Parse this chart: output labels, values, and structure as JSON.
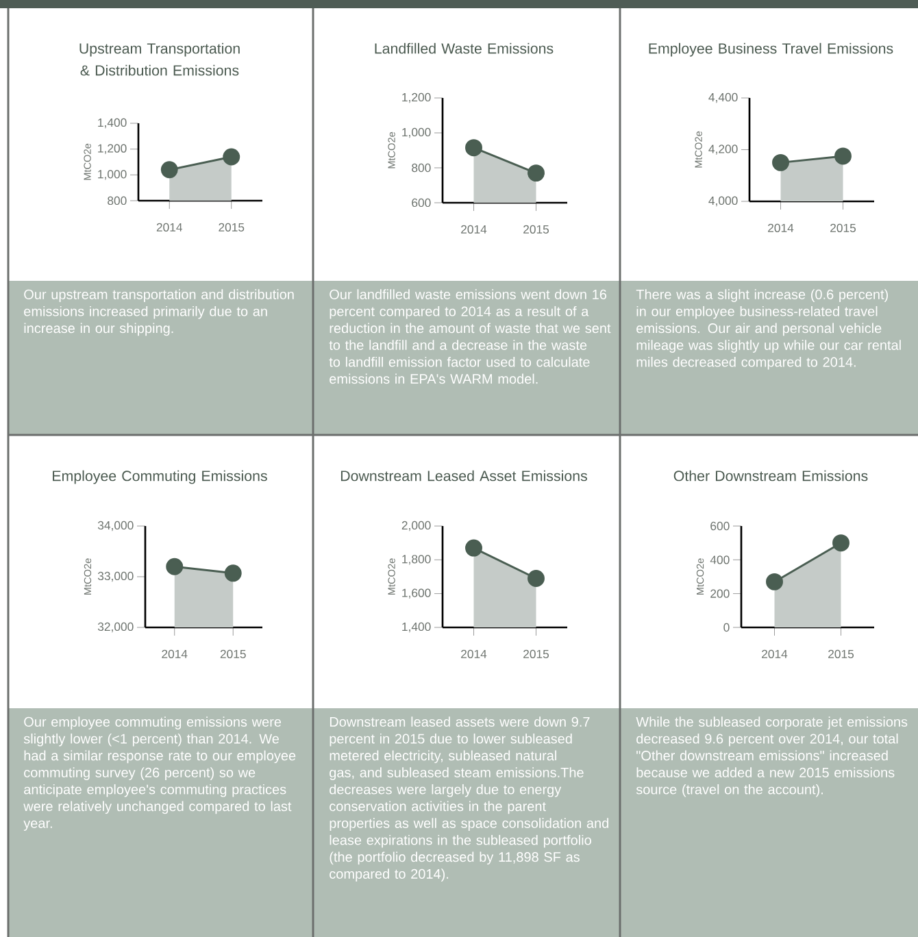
{
  "chart_data": [
    {
      "type": "area",
      "title": "Upstream Transportation & Distribution Emissions",
      "ylabel": "MtCO2e",
      "categories": [
        "2014",
        "2015"
      ],
      "series": [
        {
          "color": "#4a5e52",
          "values": [
            1040,
            1140
          ]
        }
      ],
      "ylim": [
        800,
        1400
      ],
      "yticks": [
        800,
        {
          "value": 1000,
          "label": "1,000"
        },
        {
          "value": 1200,
          "label": "1,200"
        },
        {
          "value": 1400,
          "label": "1,400"
        }
      ],
      "marker": "circle",
      "annotations": [
        "Our upstream transportation and distribution emissions increased primarily due to an increase in our shipping."
      ]
    },
    {
      "type": "area",
      "title": "Landfilled Waste Emissions",
      "ylabel": "MtCO2e",
      "categories": [
        "2014",
        "2015"
      ],
      "series": [
        {
          "color": "#4a5e52",
          "values": [
            915,
            770
          ]
        }
      ],
      "ylim": [
        600,
        1200
      ],
      "yticks": [
        600,
        800,
        {
          "value": 1000,
          "label": "1,000"
        },
        {
          "value": 1200,
          "label": "1,200"
        }
      ],
      "marker": "circle",
      "annotations": [
        "Our landfilled waste emissions went down 16 percent compared to 2014 as a result of a reduction in the amount of waste that we sent to the landfill and a decrease in the waste to landfill emission factor used to calculate emissions in EPA's WARM model."
      ]
    },
    {
      "type": "area",
      "title": "Employee Business Travel Emissions",
      "ylabel": "MtCO2e",
      "categories": [
        "2014",
        "2015"
      ],
      "series": [
        {
          "color": "#4a5e52",
          "values": [
            4150,
            4175
          ]
        }
      ],
      "ylim": [
        4000,
        4400
      ],
      "yticks": [
        {
          "value": 4000,
          "label": "4,000"
        },
        {
          "value": 4200,
          "label": "4,200"
        },
        {
          "value": 4400,
          "label": "4,400"
        }
      ],
      "marker": "circle",
      "annotations": [
        "There was a slight increase (0.6 percent) in our employee business-related travel emissions. Our air and personal vehicle mileage was slightly up while our car rental miles decreased compared to 2014."
      ]
    },
    {
      "type": "area",
      "title": "Employee Commuting Emissions",
      "ylabel": "MtCO2e",
      "categories": [
        "2014",
        "2015"
      ],
      "series": [
        {
          "color": "#4a5e52",
          "values": [
            33200,
            33070
          ]
        }
      ],
      "ylim": [
        32000,
        34000
      ],
      "yticks": [
        {
          "value": 32000,
          "label": "32,000"
        },
        {
          "value": 33000,
          "label": "33,000"
        },
        {
          "value": 34000,
          "label": "34,000"
        }
      ],
      "marker": "circle",
      "annotations": [
        "Our employee commuting emissions were slightly lower (<1 percent) than 2014. We had a similar response rate to our employee commuting survey (26 percent) so we anticipate employee's commuting practices were relatively unchanged compared to last year."
      ]
    },
    {
      "type": "area",
      "title": "Downstream Leased Asset Emissions",
      "ylabel": "MtCO2e",
      "categories": [
        "2014",
        "2015"
      ],
      "series": [
        {
          "color": "#4a5e52",
          "values": [
            1870,
            1690
          ]
        }
      ],
      "ylim": [
        1400,
        2000
      ],
      "yticks": [
        {
          "value": 1400,
          "label": "1,400"
        },
        {
          "value": 1600,
          "label": "1,600"
        },
        {
          "value": 1800,
          "label": "1,800"
        },
        {
          "value": 2000,
          "label": "2,000"
        }
      ],
      "marker": "circle",
      "annotations": [
        "Downstream leased assets were down 9.7 percent in 2015 due to lower subleased metered electricity, subleased natural gas, and subleased steam emissions.The decreases were largely due to energy conservation activities in the parent properties as well as space consolidation and lease expirations in the subleased portfolio (the portfolio decreased by 11,898 SF as compared to 2014)."
      ]
    },
    {
      "type": "area",
      "title": "Other Downstream Emissions",
      "ylabel": "MtCO2e",
      "categories": [
        "2014",
        "2015"
      ],
      "series": [
        {
          "color": "#4a5e52",
          "values": [
            270,
            500
          ]
        }
      ],
      "ylim": [
        0,
        600
      ],
      "yticks": [
        0,
        200,
        400,
        600
      ],
      "marker": "circle",
      "annotations": [
        "While the subleased corporate jet emissions decreased 9.6 percent over 2014, our total \"Other downstream emissions\" increased because we added a new 2015 emissions source (travel on the account)."
      ]
    }
  ]
}
